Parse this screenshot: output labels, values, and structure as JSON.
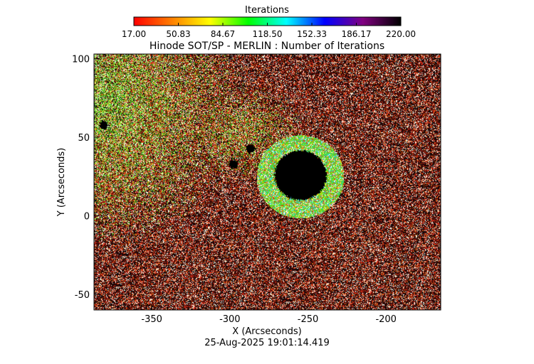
{
  "chart_data": {
    "type": "heatmap",
    "title": "Hinode SOT/SP - MERLIN : Number of Iterations",
    "xlabel": "X (Arcseconds)",
    "ylabel": "Y (Arcseconds)",
    "timestamp": "25-Aug-2025 19:01:14.419",
    "xlim": [
      -387,
      -165
    ],
    "ylim": [
      -60,
      103
    ],
    "x_ticks": [
      -350,
      -300,
      -250,
      -200
    ],
    "y_ticks": [
      -50,
      0,
      50,
      100
    ],
    "colorbar": {
      "title": "Iterations",
      "min": 17.0,
      "max": 220.0,
      "tick_labels": [
        "17.00",
        "50.83",
        "84.67",
        "118.50",
        "152.33",
        "186.17",
        "220.00"
      ],
      "colormap": [
        "#ff0000",
        "#ff8000",
        "#ffff00",
        "#00ff00",
        "#00ffff",
        "#0000ff",
        "#800080",
        "#000000"
      ]
    },
    "features": [
      {
        "type": "sunspot umbra",
        "center": [
          -255,
          26
        ],
        "radius": 16,
        "value": 220.0
      },
      {
        "type": "sunspot penumbra",
        "center": [
          -255,
          25
        ],
        "inner_radius": 14,
        "outer_radius": 28,
        "value": 110.0
      },
      {
        "type": "pore",
        "center": [
          -287,
          43
        ],
        "value": 220.0
      },
      {
        "type": "pore",
        "center": [
          -298,
          33
        ],
        "value": 220.0
      },
      {
        "type": "pore",
        "center": [
          -381,
          58
        ],
        "value": 220.0
      }
    ],
    "background": "mixed high (black) and low (red/white) iteration counts; green patches in upper-left plage region"
  }
}
